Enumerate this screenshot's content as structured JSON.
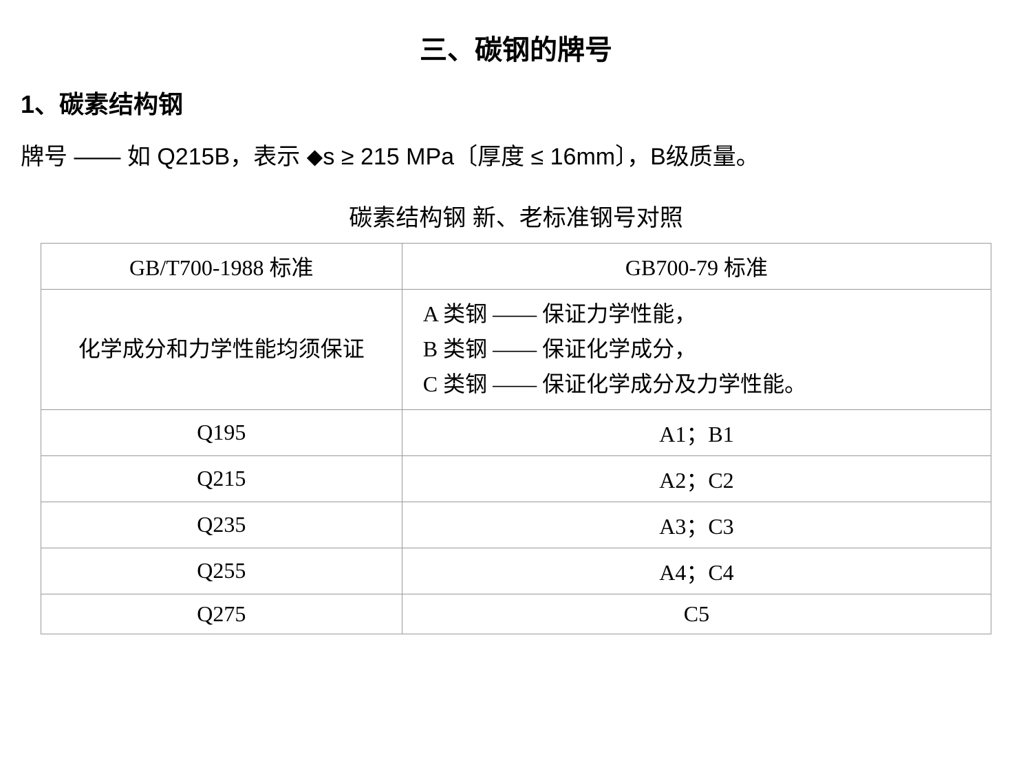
{
  "title": "三、碳钢的牌号",
  "section": "1、碳素结构钢",
  "body": "牌号 —— 如 Q215B，表示 ⬥s ≥ 215 MPa〔厚度 ≤ 16mm〕，B级质量。",
  "table": {
    "caption": "碳素结构钢 新、老标准钢号对照",
    "header_left": "GB/T700-1988 标准",
    "header_right": "GB700-79 标准",
    "desc_left": "化学成分和力学性能均须保证",
    "desc_right_a": "A 类钢 —— 保证力学性能，",
    "desc_right_b": "B 类钢 —— 保证化学成分，",
    "desc_right_c": "C 类钢 —— 保证化学成分及力学性能。",
    "rows": [
      {
        "left": "Q195",
        "right": "A1；B1"
      },
      {
        "left": "Q215",
        "right": "A2；C2"
      },
      {
        "left": "Q235",
        "right": "A3；C3"
      },
      {
        "left": "Q255",
        "right": "A4；C4"
      },
      {
        "left": "Q275",
        "right": "C5"
      }
    ]
  },
  "colors": {
    "background": "#ffffff",
    "text": "#000000",
    "border": "#999999"
  }
}
